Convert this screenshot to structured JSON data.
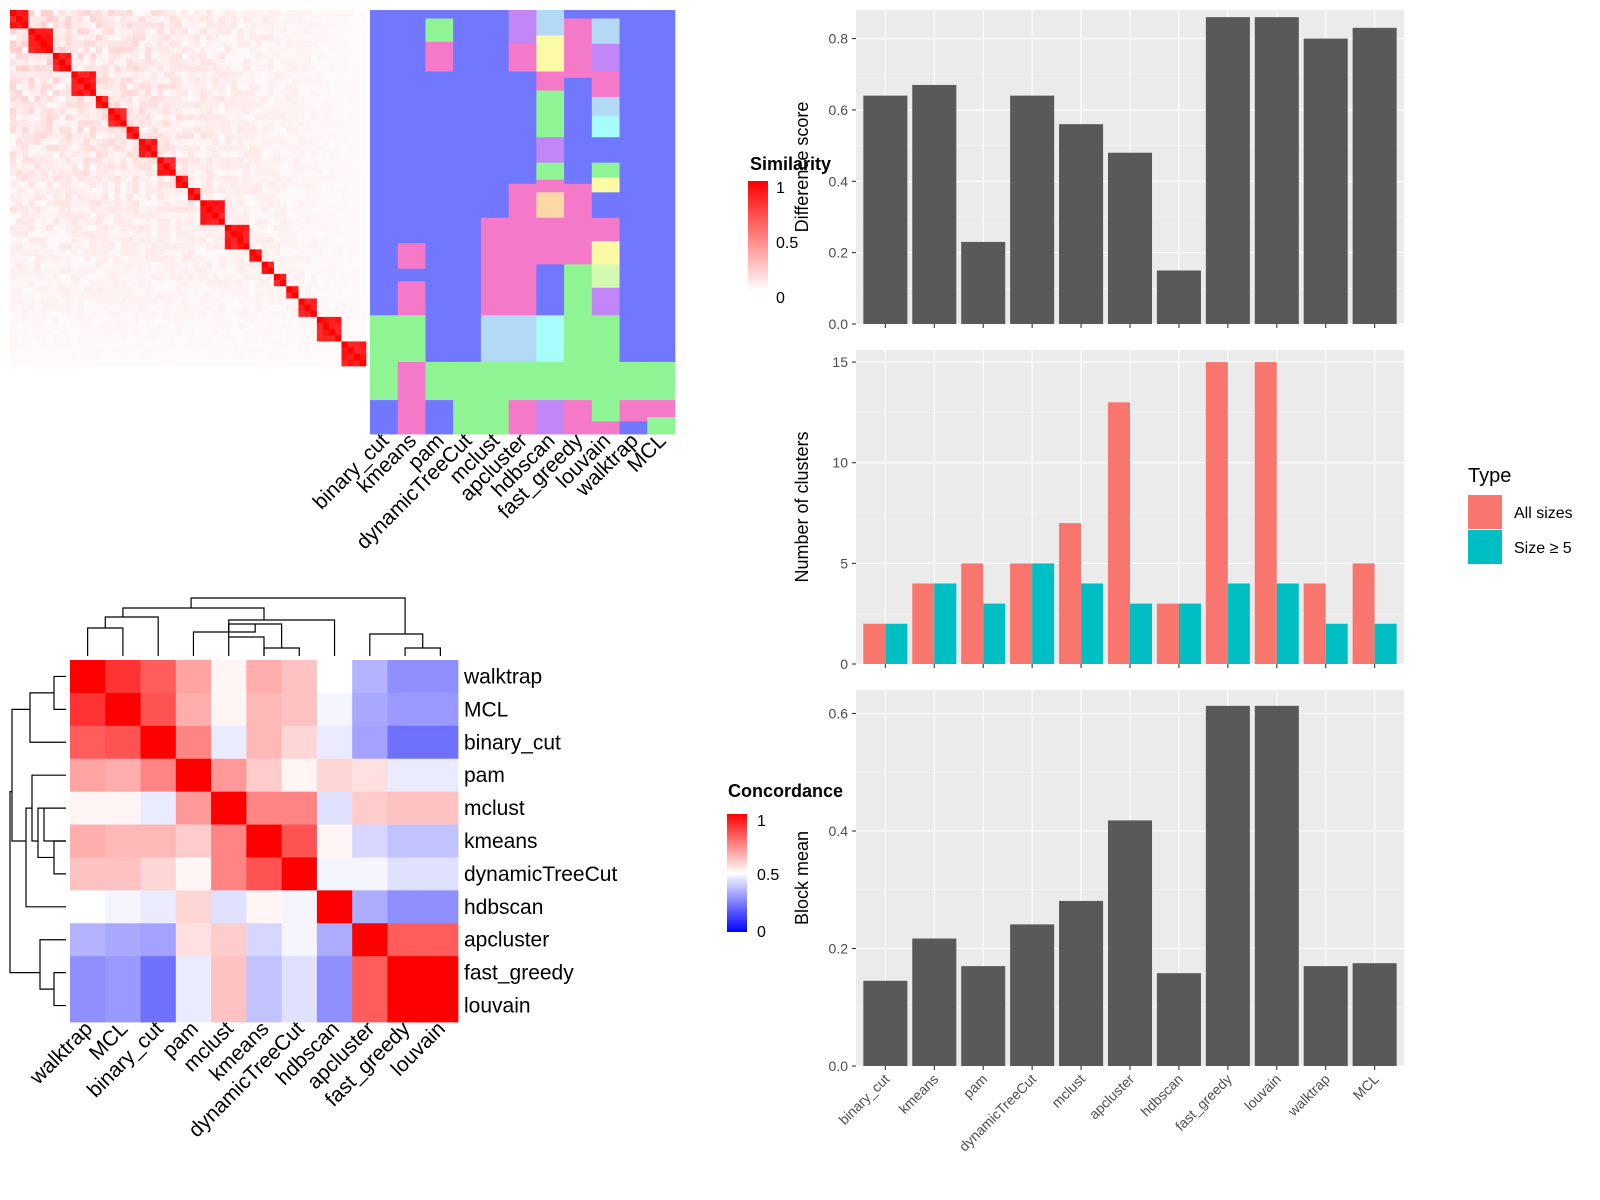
{
  "methods": [
    "binary_cut",
    "kmeans",
    "pam",
    "dynamicTreeCut",
    "mclust",
    "apcluster",
    "hdbscan",
    "fast_greedy",
    "louvain",
    "walktrap",
    "MCL"
  ],
  "chart_data": [
    {
      "type": "heatmap",
      "id": "similarity-heatmap",
      "legend_title": "Similarity",
      "legend_ticks": [
        "1",
        "0.5",
        "0"
      ],
      "columns": [
        "binary_cut",
        "kmeans",
        "pam",
        "dynamicTreeCut",
        "mclust",
        "apcluster",
        "hdbscan",
        "fast_greedy",
        "louvain",
        "walktrap",
        "MCL"
      ],
      "n_items": 58,
      "value_range": [
        0,
        1
      ],
      "colors": {
        "low": "#ffffff",
        "high": "#ff0000"
      }
    },
    {
      "type": "heatmap",
      "id": "concordance-heatmap",
      "legend_title": "Concordance",
      "legend_ticks": [
        "1",
        "0.5",
        "0"
      ],
      "rows": [
        "walktrap",
        "MCL",
        "binary_cut",
        "pam",
        "mclust",
        "kmeans",
        "dynamicTreeCut",
        "hdbscan",
        "apcluster",
        "fast_greedy",
        "louvain"
      ],
      "columns": [
        "walktrap",
        "MCL",
        "binary_cut",
        "pam",
        "mclust",
        "kmeans",
        "dynamicTreeCut",
        "hdbscan",
        "apcluster",
        "fast_greedy",
        "louvain"
      ],
      "values": [
        [
          1.0,
          0.9,
          0.82,
          0.68,
          0.52,
          0.66,
          0.62,
          0.5,
          0.35,
          0.28,
          0.28
        ],
        [
          0.9,
          1.0,
          0.84,
          0.66,
          0.52,
          0.64,
          0.62,
          0.48,
          0.33,
          0.3,
          0.3
        ],
        [
          0.82,
          0.84,
          1.0,
          0.74,
          0.46,
          0.64,
          0.58,
          0.46,
          0.32,
          0.22,
          0.22
        ],
        [
          0.68,
          0.66,
          0.74,
          1.0,
          0.7,
          0.6,
          0.52,
          0.58,
          0.56,
          0.46,
          0.46
        ],
        [
          0.52,
          0.52,
          0.46,
          0.7,
          1.0,
          0.74,
          0.74,
          0.44,
          0.6,
          0.62,
          0.62
        ],
        [
          0.66,
          0.64,
          0.64,
          0.6,
          0.74,
          1.0,
          0.84,
          0.52,
          0.42,
          0.38,
          0.38
        ],
        [
          0.62,
          0.62,
          0.58,
          0.52,
          0.74,
          0.84,
          1.0,
          0.48,
          0.48,
          0.44,
          0.44
        ],
        [
          0.5,
          0.48,
          0.46,
          0.58,
          0.44,
          0.52,
          0.48,
          1.0,
          0.34,
          0.28,
          0.28
        ],
        [
          0.35,
          0.33,
          0.32,
          0.56,
          0.6,
          0.42,
          0.48,
          0.34,
          1.0,
          0.82,
          0.82
        ],
        [
          0.28,
          0.3,
          0.22,
          0.46,
          0.62,
          0.38,
          0.44,
          0.28,
          0.82,
          1.0,
          1.0
        ],
        [
          0.28,
          0.3,
          0.22,
          0.46,
          0.62,
          0.38,
          0.44,
          0.28,
          0.82,
          1.0,
          1.0
        ]
      ],
      "value_range": [
        0,
        1
      ],
      "colors": {
        "low": "#0000ff",
        "mid": "#ffffff",
        "high": "#ff0000"
      }
    },
    {
      "type": "bar",
      "id": "difference-score",
      "categories": [
        "binary_cut",
        "kmeans",
        "pam",
        "dynamicTreeCut",
        "mclust",
        "apcluster",
        "hdbscan",
        "fast_greedy",
        "louvain",
        "walktrap",
        "MCL"
      ],
      "values": [
        0.64,
        0.67,
        0.23,
        0.64,
        0.56,
        0.48,
        0.15,
        0.86,
        0.86,
        0.8,
        0.83
      ],
      "ylabel": "Difference score",
      "ylim": [
        0,
        0.88
      ],
      "yticks": [
        0.0,
        0.2,
        0.4,
        0.6,
        0.8
      ],
      "ytick_labels": [
        "0.0",
        "0.2",
        "0.4",
        "0.6",
        "0.8"
      ],
      "color": "#595959",
      "grid": true
    },
    {
      "type": "bar",
      "id": "number-of-clusters",
      "categories": [
        "binary_cut",
        "kmeans",
        "pam",
        "dynamicTreeCut",
        "mclust",
        "apcluster",
        "hdbscan",
        "fast_greedy",
        "louvain",
        "walktrap",
        "MCL"
      ],
      "series": [
        {
          "name": "All sizes",
          "values": [
            2,
            4,
            5,
            5,
            7,
            13,
            3,
            15,
            15,
            4,
            5
          ],
          "color": "#f8766d"
        },
        {
          "name": "Size ≥ 5",
          "values": [
            2,
            4,
            3,
            5,
            4,
            3,
            3,
            4,
            4,
            2,
            2
          ],
          "color": "#00bfc4"
        }
      ],
      "ylabel": "Number of clusters",
      "ylim": [
        0,
        15.6
      ],
      "yticks": [
        0,
        5,
        10,
        15
      ],
      "ytick_labels": [
        "0",
        "5",
        "10",
        "15"
      ],
      "legend_title": "Type",
      "legend_position": "right",
      "grid": true
    },
    {
      "type": "bar",
      "id": "block-mean",
      "categories": [
        "binary_cut",
        "kmeans",
        "pam",
        "dynamicTreeCut",
        "mclust",
        "apcluster",
        "hdbscan",
        "fast_greedy",
        "louvain",
        "walktrap",
        "MCL"
      ],
      "values": [
        0.145,
        0.217,
        0.17,
        0.241,
        0.281,
        0.418,
        0.158,
        0.613,
        0.613,
        0.17,
        0.175
      ],
      "ylabel": "Block mean",
      "ylim": [
        0,
        0.64
      ],
      "yticks": [
        0.0,
        0.2,
        0.4,
        0.6
      ],
      "ytick_labels": [
        "0.0",
        "0.2",
        "0.4",
        "0.6"
      ],
      "color": "#595959",
      "grid": true
    }
  ]
}
